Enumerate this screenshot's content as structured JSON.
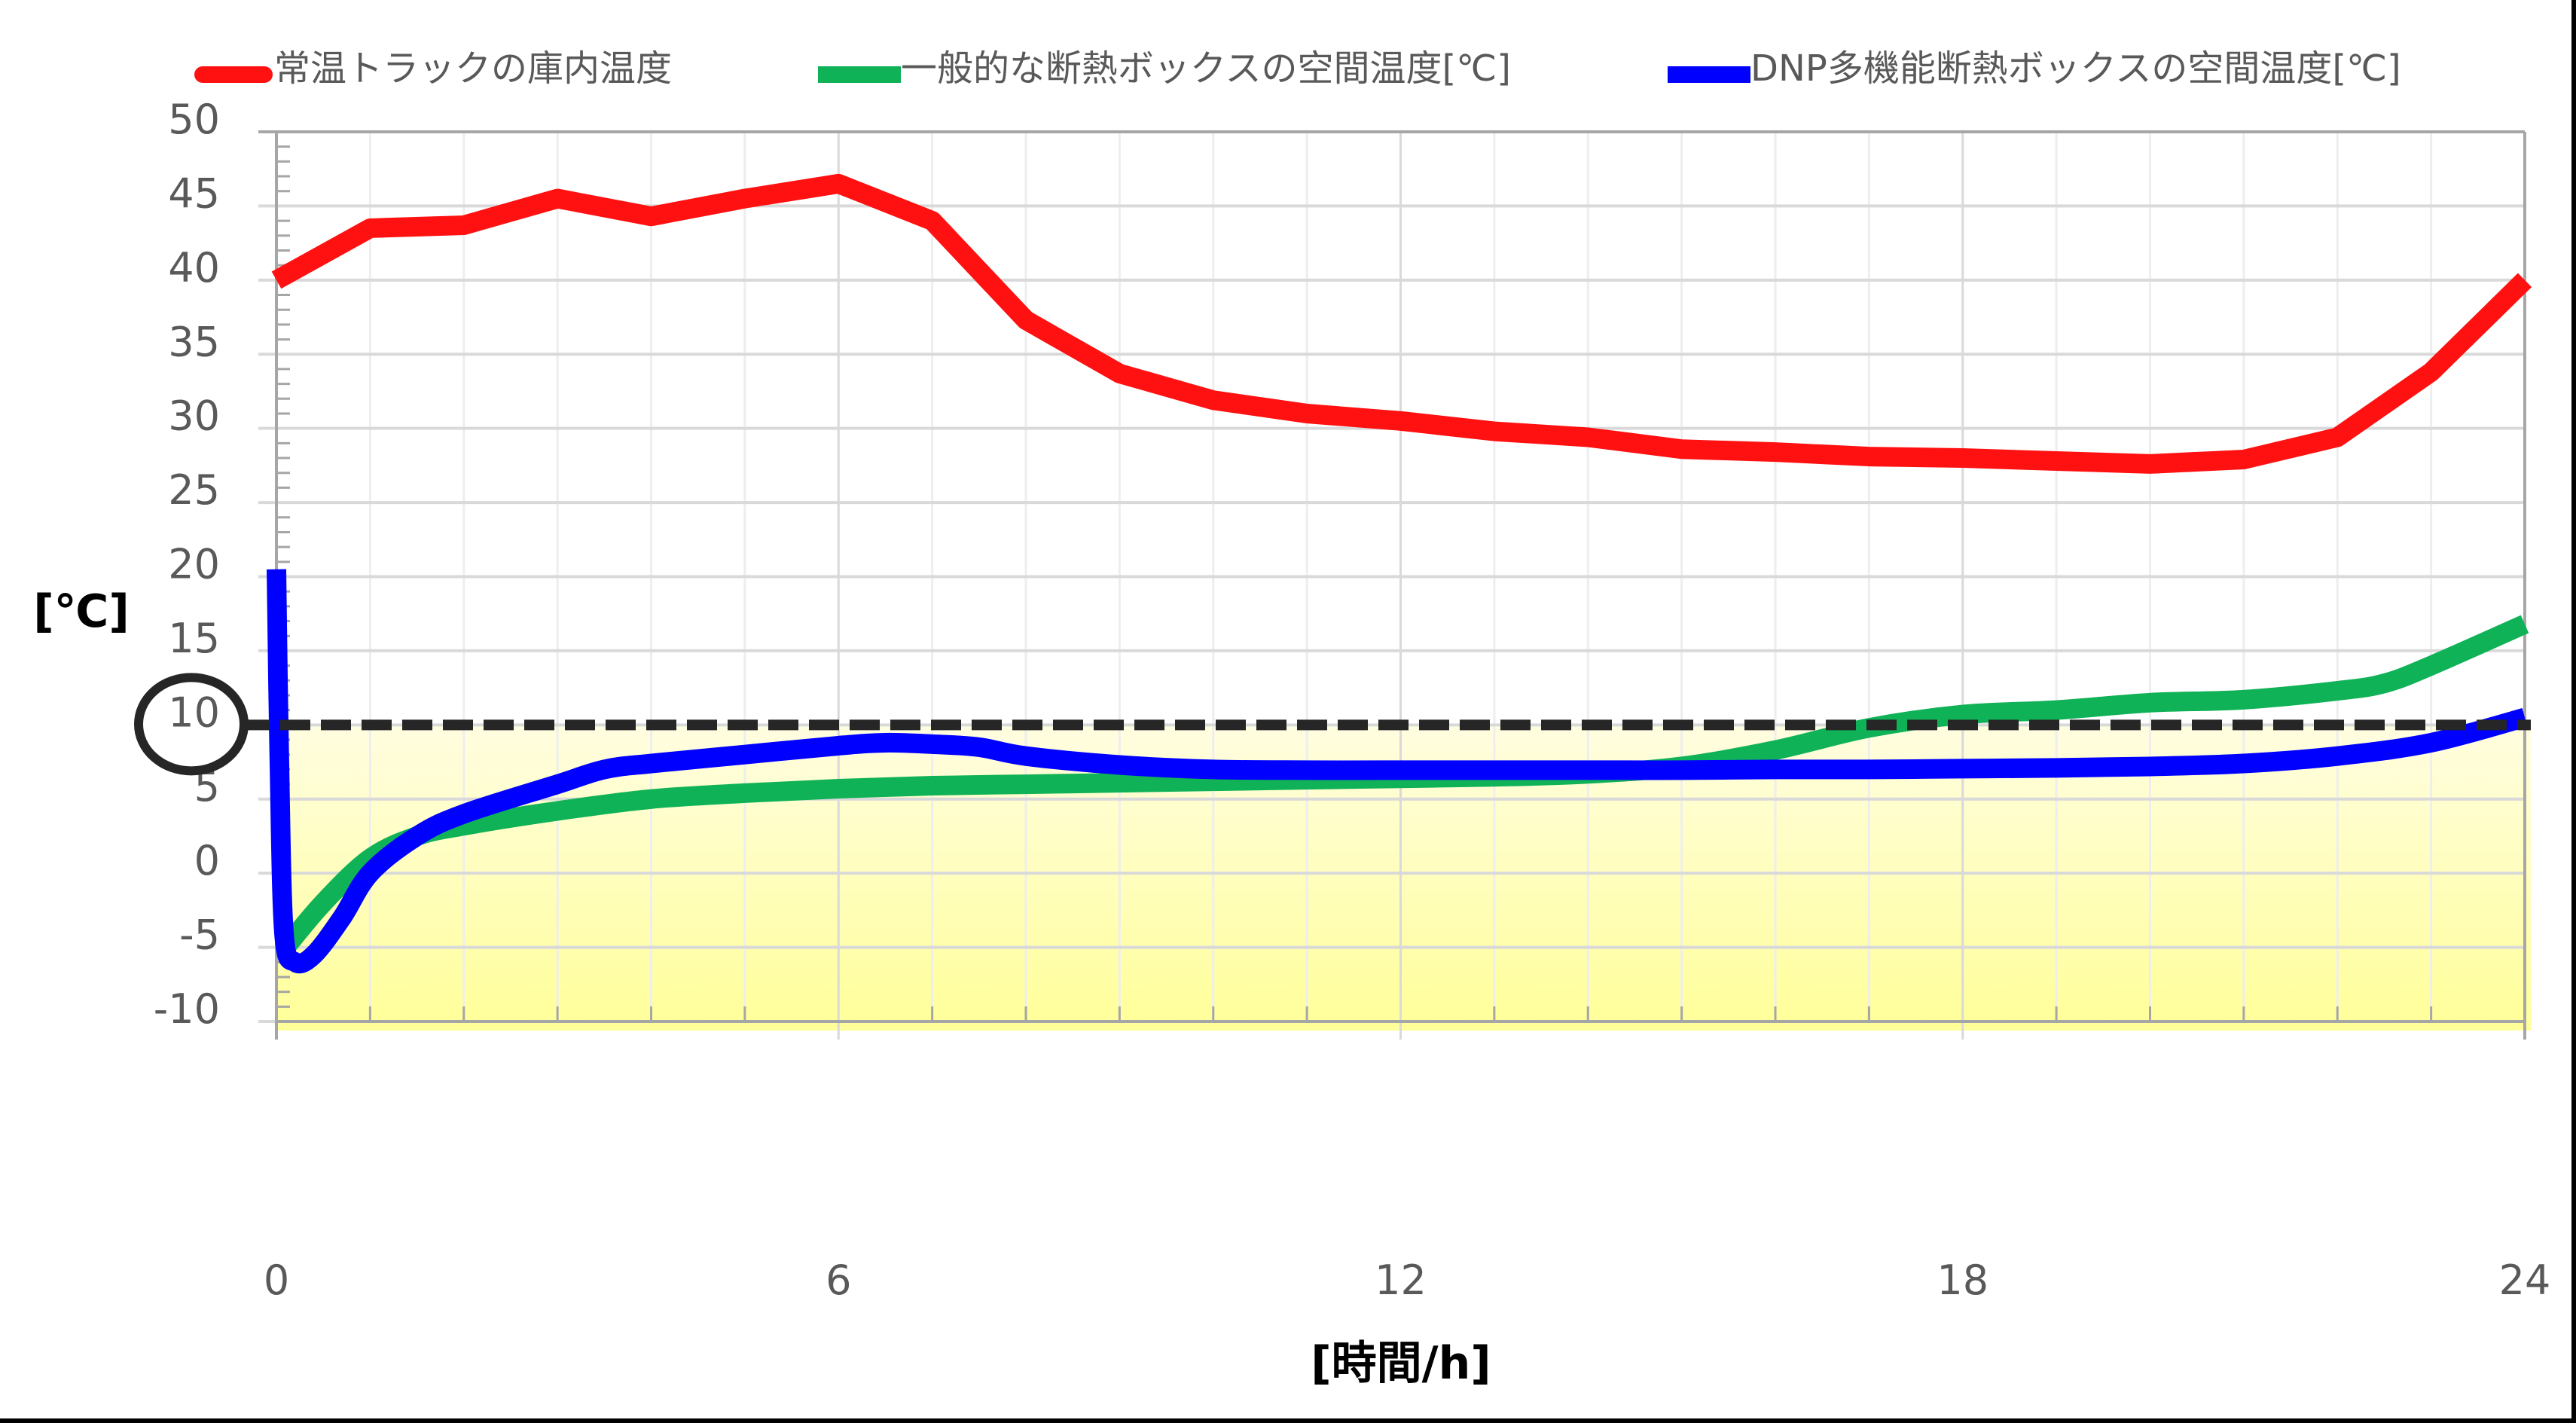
{
  "chart_data": {
    "type": "line",
    "title": "",
    "xlabel": "[時間/h]",
    "ylabel": "[℃]",
    "xlim": [
      0,
      24
    ],
    "ylim": [
      -10,
      50
    ],
    "x_ticks": [
      0,
      6,
      12,
      18,
      24
    ],
    "y_ticks": [
      50,
      45,
      40,
      35,
      30,
      25,
      20,
      15,
      10,
      5,
      0,
      -5,
      -10
    ],
    "grid": true,
    "legend_position": "top",
    "highlighted_tick": 10,
    "threshold_line": {
      "y": 10,
      "style": "dashed",
      "color": "#262626"
    },
    "shaded_region": {
      "y_from": -10,
      "y_to": 10,
      "color_top": "#fffde0",
      "color_bottom": "#ffff99"
    },
    "series": [
      {
        "name": "常温トラックの庫内温度",
        "color": "#ff1111",
        "x": [
          0,
          1,
          2,
          3,
          4,
          5,
          6,
          7,
          8,
          9,
          10,
          11,
          12,
          13,
          14,
          15,
          16,
          17,
          18,
          19,
          20,
          21,
          22,
          23,
          24
        ],
        "values": [
          40,
          43.5,
          43.7,
          45.5,
          44.3,
          45.5,
          46.5,
          44,
          37.3,
          33.7,
          31.9,
          31,
          30.5,
          29.8,
          29.4,
          28.6,
          28.4,
          28.1,
          28,
          27.8,
          27.6,
          27.9,
          29.4,
          33.8,
          40
        ]
      },
      {
        "name": "一般的な断熱ボックスの空間温度[℃]",
        "color": "#10b257",
        "x": [
          0.1,
          0.5,
          1,
          1.5,
          2,
          3,
          4,
          5,
          6,
          7,
          8,
          9,
          10,
          11,
          12,
          13,
          14,
          15,
          16,
          17,
          18,
          19,
          20,
          21,
          22,
          22.5,
          23,
          24
        ],
        "values": [
          -5,
          -2,
          1,
          2.5,
          3.2,
          4.2,
          5,
          5.4,
          5.7,
          5.9,
          6,
          6.1,
          6.2,
          6.3,
          6.4,
          6.5,
          6.7,
          7.2,
          8.3,
          9.8,
          10.7,
          11,
          11.5,
          11.7,
          12.3,
          12.8,
          14,
          16.8
        ]
      },
      {
        "name": "DNP多機能断熱ボックスの空間温度[℃]",
        "color": "#0000ff",
        "x": [
          0,
          0.03,
          0.08,
          0.2,
          0.4,
          0.7,
          1,
          1.5,
          2,
          3,
          3.5,
          4,
          5,
          6,
          6.5,
          7,
          7.5,
          8,
          9,
          10,
          11,
          12,
          13,
          14,
          15,
          16,
          17,
          18,
          19,
          20,
          21,
          22,
          23,
          24
        ],
        "values": [
          20.5,
          8,
          -4,
          -6,
          -5.5,
          -3,
          0,
          2.5,
          4,
          6,
          7,
          7.4,
          8,
          8.6,
          8.8,
          8.7,
          8.5,
          7.9,
          7.3,
          7,
          6.95,
          6.95,
          6.95,
          6.95,
          6.95,
          7,
          7,
          7.05,
          7.1,
          7.2,
          7.4,
          7.9,
          8.8,
          10.5
        ]
      }
    ]
  },
  "legend": {
    "items": [
      {
        "label": "常温トラックの庫内温度",
        "color": "#ff1111"
      },
      {
        "label": "一般的な断熱ボックスの空間温度[℃]",
        "color": "#10b257"
      },
      {
        "label": "DNP多機能断熱ボックスの空間温度[℃]",
        "color": "#0000ff"
      }
    ]
  },
  "axes": {
    "x_title": "[時間/h]",
    "y_title": "[℃]",
    "x_tick_labels": [
      "0",
      "6",
      "12",
      "18",
      "24"
    ],
    "y_tick_labels": [
      "50",
      "45",
      "40",
      "35",
      "30",
      "25",
      "20",
      "15",
      "10",
      "5",
      "0",
      "-5",
      "-10"
    ]
  },
  "colors": {
    "axis": "#a6a6a6",
    "major_grid": "#d9d9d9",
    "minor_grid": "#eeeeee",
    "threshold": "#262626",
    "circle": "#262626"
  }
}
